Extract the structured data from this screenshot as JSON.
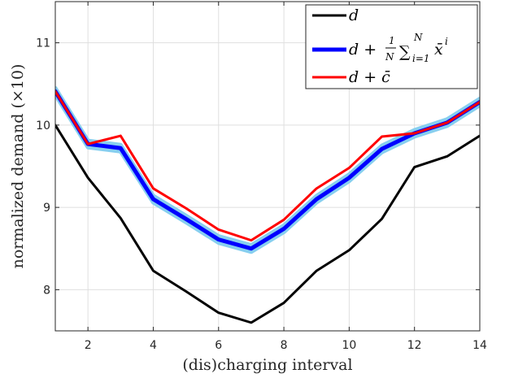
{
  "chart_data": {
    "type": "line",
    "xlabel": "(dis)charging interval",
    "ylabel": "normalized demand (×10)",
    "xlim": [
      1,
      14
    ],
    "ylim": [
      7.5,
      11.5
    ],
    "xticks": [
      2,
      4,
      6,
      8,
      10,
      12,
      14
    ],
    "yticks": [
      8,
      9,
      10,
      11
    ],
    "grid": true,
    "legend_position": "top-right",
    "x": [
      1,
      2,
      3,
      4,
      5,
      6,
      7,
      8,
      9,
      10,
      11,
      12,
      13,
      14
    ],
    "series": [
      {
        "key": "d",
        "color": "#000000",
        "values": [
          10.0,
          9.36,
          8.87,
          8.23,
          7.98,
          7.72,
          7.6,
          7.84,
          8.23,
          8.48,
          8.86,
          9.49,
          9.62,
          9.87
        ]
      },
      {
        "key": "avg",
        "color": "#0000ff",
        "band_color": "#87cfef",
        "values": [
          10.41,
          9.77,
          9.72,
          9.1,
          8.86,
          8.61,
          8.5,
          8.74,
          9.1,
          9.36,
          9.71,
          9.9,
          10.03,
          10.28
        ]
      },
      {
        "key": "cbar",
        "color": "#ff0000",
        "values": [
          10.41,
          9.77,
          9.87,
          9.23,
          8.99,
          8.73,
          8.6,
          8.85,
          9.23,
          9.48,
          9.86,
          9.9,
          10.03,
          10.28
        ]
      }
    ]
  }
}
